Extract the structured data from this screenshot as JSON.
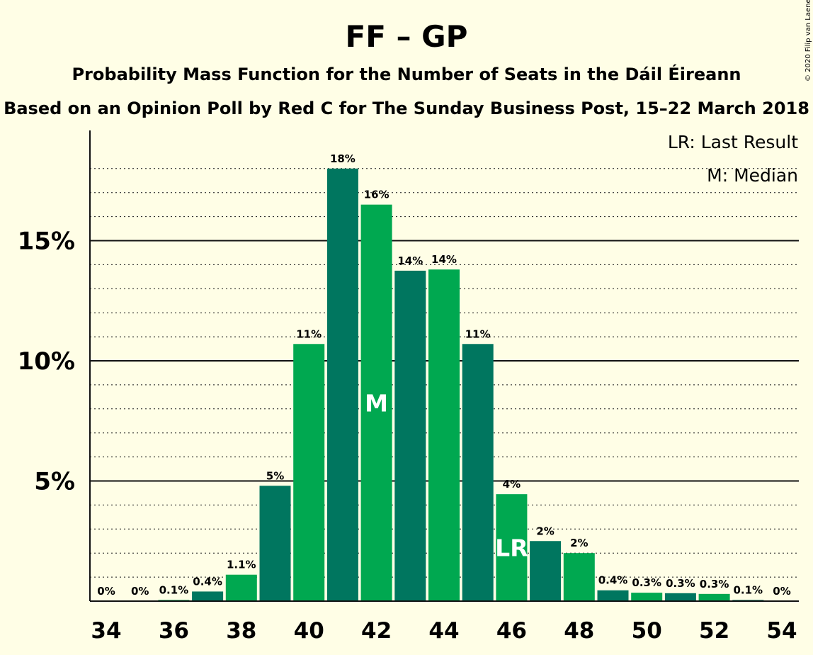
{
  "header": {
    "title": "FF – GP",
    "subtitle1": "Probability Mass Function for the Number of Seats in the Dáil Éireann",
    "subtitle2": "Based on an Opinion Poll by Red C for The Sunday Business Post, 15–22 March 2018"
  },
  "copyright": "© 2020 Filip van Laenen",
  "legend": {
    "last_result": "LR: Last Result",
    "median": "M: Median"
  },
  "colors": {
    "dark_bar": "#00765F",
    "light_bar": "#00A850",
    "background": "#FFFEE6"
  },
  "chart_data": {
    "type": "bar",
    "x": [
      34,
      35,
      36,
      37,
      38,
      39,
      40,
      41,
      42,
      43,
      44,
      45,
      46,
      47,
      48,
      49,
      50,
      51,
      52,
      53,
      54
    ],
    "values": [
      0,
      0,
      0.05,
      0.4,
      1.1,
      4.8,
      10.7,
      18.0,
      16.5,
      13.75,
      13.8,
      10.7,
      4.45,
      2.5,
      2.0,
      0.45,
      0.35,
      0.33,
      0.3,
      0.05,
      0
    ],
    "labels": [
      "0%",
      "0%",
      "0.1%",
      "0.4%",
      "1.1%",
      "5%",
      "11%",
      "18%",
      "16%",
      "14%",
      "14%",
      "11%",
      "4%",
      "2%",
      "2%",
      "0.4%",
      "0.3%",
      "0.3%",
      "0.3%",
      "0.1%",
      "0%"
    ],
    "x_tick_labels": [
      "34",
      "36",
      "38",
      "40",
      "42",
      "44",
      "46",
      "48",
      "50",
      "52",
      "54"
    ],
    "y_tick_labels": [
      "5%",
      "10%",
      "15%"
    ],
    "y_ticks": [
      5,
      10,
      15
    ],
    "ylim": [
      0,
      19.5
    ],
    "grid": true,
    "median_seat": 42,
    "median_marker": "M",
    "last_result_seat": 46,
    "last_result_marker": "LR",
    "legend_placement": "top-right"
  }
}
